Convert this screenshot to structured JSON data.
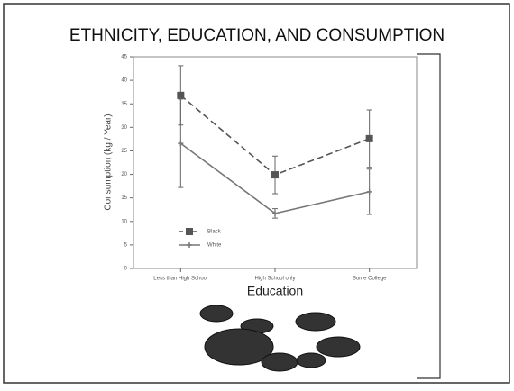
{
  "chart_data": {
    "type": "line",
    "title": "ETHNICITY, EDUCATION, AND CONSUMPTION",
    "x_label": "Education",
    "y_label": "Consumption (kg / Year)",
    "categories": [
      "Less than High School",
      "High School only",
      "Some College"
    ],
    "series": [
      {
        "name": "Black",
        "color": "#555555",
        "marker": "square",
        "dash": true,
        "values": [
          36.8,
          19.9,
          27.6
        ],
        "errors": [
          6.3,
          4,
          6.1
        ]
      },
      {
        "name": "White",
        "color": "#777777",
        "marker": "cross",
        "dash": false,
        "values": [
          26.6,
          11.7,
          16.3
        ],
        "errors": [
          9.4,
          1,
          4.8
        ]
      }
    ],
    "ylim": [
      0,
      45
    ],
    "yticks": [
      0,
      5,
      10,
      15,
      20,
      25,
      30,
      35,
      40,
      45
    ]
  }
}
